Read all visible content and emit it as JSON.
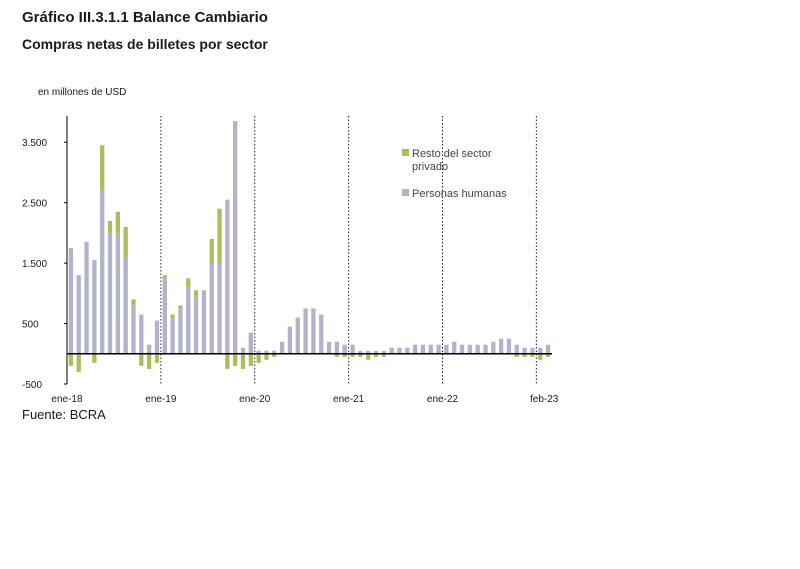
{
  "header": {
    "title": "Gráfico III.3.1.1 Balance Cambiario",
    "subtitle": "Compras netas de billetes por sector",
    "unit_label": "en millones de USD"
  },
  "footer": {
    "source": "Fuente: BCRA"
  },
  "colors": {
    "privado": "#aebd5c",
    "personas": "#b1b3cc",
    "axis": "#000000"
  },
  "chart_data": {
    "type": "bar",
    "stacked": true,
    "ylim": [
      -500,
      4000
    ],
    "yticks": [
      -500,
      500,
      1500,
      2500,
      3500
    ],
    "ytick_labels": [
      "-500",
      "500",
      "1.500",
      "2.500",
      "3.500"
    ],
    "xtick_labels": [
      {
        "index": 0,
        "label": "ene-18"
      },
      {
        "index": 12,
        "label": "ene-19"
      },
      {
        "index": 24,
        "label": "ene-20"
      },
      {
        "index": 36,
        "label": "ene-21"
      },
      {
        "index": 48,
        "label": "ene-22"
      },
      {
        "index": 61,
        "label": "feb-23"
      }
    ],
    "vlines": [
      12,
      24,
      36,
      48,
      60
    ],
    "legend_position": "top-right",
    "series": [
      {
        "key": "personas",
        "name": "Personas humanas",
        "values": [
          1750,
          1300,
          1850,
          1550,
          2700,
          2000,
          2000,
          1600,
          800,
          650,
          150,
          550,
          1250,
          600,
          750,
          1100,
          950,
          1050,
          1500,
          1500,
          2550,
          3850,
          100,
          350,
          50,
          50,
          50,
          200,
          450,
          600,
          750,
          750,
          650,
          200,
          200,
          150,
          150,
          50,
          50,
          50,
          50,
          100,
          100,
          100,
          150,
          150,
          150,
          150,
          150,
          200,
          150,
          150,
          150,
          150,
          200,
          250,
          250,
          150,
          100,
          100,
          100,
          150
        ]
      },
      {
        "key": "privado",
        "name": "Resto del sector privado",
        "values": [
          -200,
          -300,
          0,
          -150,
          750,
          200,
          350,
          500,
          100,
          -200,
          -250,
          -150,
          50,
          50,
          50,
          150,
          100,
          0,
          400,
          900,
          -250,
          -200,
          -250,
          -200,
          -150,
          -100,
          -50,
          0,
          0,
          0,
          0,
          0,
          0,
          0,
          -50,
          -50,
          -50,
          -50,
          -100,
          -50,
          -50,
          0,
          0,
          0,
          0,
          0,
          0,
          0,
          0,
          0,
          0,
          0,
          0,
          0,
          0,
          0,
          0,
          -50,
          -50,
          -50,
          -100,
          -50
        ]
      }
    ]
  }
}
